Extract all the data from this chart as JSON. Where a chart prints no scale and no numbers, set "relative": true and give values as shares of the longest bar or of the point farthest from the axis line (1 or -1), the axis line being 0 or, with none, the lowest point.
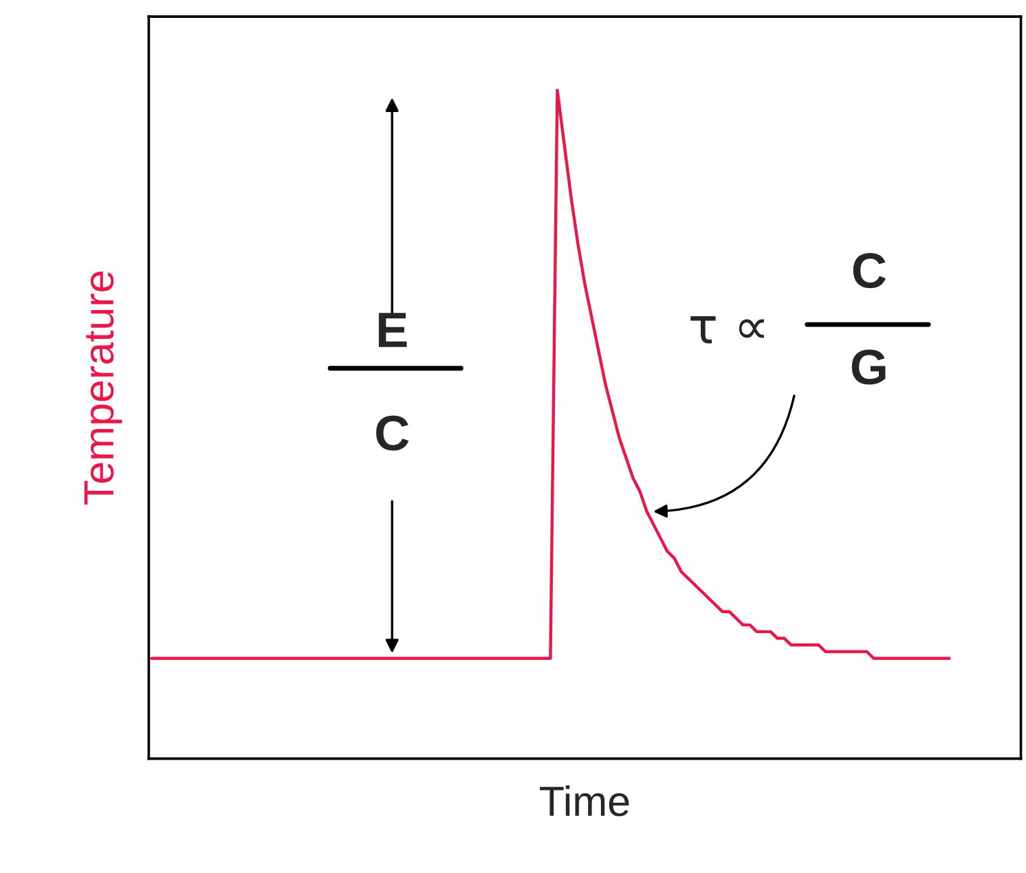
{
  "chart_data": {
    "type": "line",
    "relative": true,
    "xlabel": "Time",
    "ylabel": "Temperature",
    "annotations": [
      "E",
      "C",
      "τ ∝",
      "C",
      "G"
    ],
    "categories": [
      null,
      null,
      null,
      null,
      null,
      null,
      null,
      null,
      null,
      null,
      null,
      null,
      null,
      null,
      null,
      null,
      null,
      null,
      null,
      null,
      null,
      null,
      null,
      null,
      null,
      null,
      null,
      null,
      null,
      null,
      null,
      null,
      null,
      null,
      null,
      null,
      null,
      null,
      null,
      null,
      null,
      null,
      null,
      null,
      null,
      null,
      null,
      null,
      null,
      null,
      null,
      null,
      null,
      null,
      null,
      null,
      null,
      null,
      null,
      null,
      null,
      null,
      null,
      null,
      null,
      null,
      null,
      null,
      null,
      null,
      null,
      null,
      null,
      null,
      null,
      null,
      null,
      null,
      null,
      null,
      null,
      null,
      null,
      null,
      null,
      null,
      null,
      null,
      null,
      null,
      null,
      null,
      null,
      null,
      null,
      null,
      null,
      null,
      null,
      null,
      null,
      null,
      null,
      null,
      null,
      null,
      null,
      null,
      null,
      null,
      null,
      null,
      null,
      null,
      null,
      null,
      null
    ],
    "series": [
      {
        "color": "#e8194a",
        "values": [
          0.15,
          0.15,
          0.15,
          0.15,
          0.15,
          0.15,
          0.15,
          0.15,
          0.15,
          0.15,
          0.15,
          0.15,
          0.15,
          0.15,
          0.15,
          0.15,
          0.15,
          0.15,
          0.15,
          0.15,
          0.15,
          0.15,
          0.15,
          0.15,
          0.15,
          0.15,
          0.15,
          0.15,
          0.15,
          0.15,
          0.15,
          0.15,
          0.15,
          0.15,
          0.15,
          0.15,
          0.15,
          0.15,
          0.15,
          0.15,
          0.15,
          0.15,
          0.15,
          0.15,
          0.15,
          0.15,
          0.15,
          0.15,
          0.15,
          0.15,
          0.15,
          0.15,
          0.15,
          0.15,
          0.15,
          0.15,
          0.15,
          0.15,
          0.15,
          1.0,
          0.92,
          0.84,
          0.77,
          0.71,
          0.66,
          0.61,
          0.56,
          0.52,
          0.48,
          0.45,
          0.42,
          0.4,
          0.37,
          0.35,
          0.33,
          0.31,
          0.3,
          0.28,
          0.27,
          0.26,
          0.25,
          0.24,
          0.23,
          0.22,
          0.22,
          0.21,
          0.2,
          0.2,
          0.19,
          0.19,
          0.19,
          0.18,
          0.18,
          0.17,
          0.17,
          0.17,
          0.17,
          0.17,
          0.16,
          0.16,
          0.16,
          0.16,
          0.16,
          0.16,
          0.16,
          0.15,
          0.15,
          0.15,
          0.15,
          0.15,
          0.15,
          0.15,
          0.15,
          0.15,
          0.15,
          0.15,
          0.15
        ]
      }
    ]
  }
}
